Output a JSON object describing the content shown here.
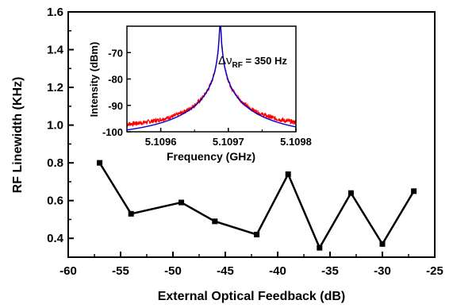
{
  "chart_data": [
    {
      "type": "line",
      "xlabel": "External Optical Feedback (dB)",
      "ylabel": "RF Linewidth (KHz)",
      "xlim": [
        -60,
        -25
      ],
      "ylim": [
        0.3,
        1.6
      ],
      "xticks": [
        "-60",
        "-55",
        "-50",
        "-45",
        "-40",
        "-35",
        "-30",
        "-25"
      ],
      "yticks": [
        "0.4",
        "0.6",
        "0.8",
        "1.0",
        "1.2",
        "1.4",
        "1.6"
      ],
      "grid": false,
      "series": [
        {
          "color": "#000000",
          "marker": "square",
          "x": [
            -57,
            -54,
            -49.2,
            -46,
            -42,
            -39,
            -36,
            -33,
            -30,
            -27
          ],
          "y": [
            0.8,
            0.53,
            0.59,
            0.49,
            0.42,
            0.74,
            0.35,
            0.64,
            0.37,
            0.65
          ]
        }
      ]
    },
    {
      "type": "line",
      "xlabel": "Frequency (GHz)",
      "ylabel": "Intensity (dBm)",
      "xlim": [
        5.10955,
        5.1098
      ],
      "ylim": [
        -100,
        -60
      ],
      "xticks": [
        "5.1096",
        "5.1097",
        "5.1098"
      ],
      "yticks": [
        "-100",
        "-90",
        "-80",
        "-70"
      ],
      "annotation": {
        "prefix": "Δν",
        "subscript": "RF",
        "suffix": " = 350 Hz"
      },
      "series": [
        {
          "color": "#ff0000",
          "kind": "measured-spectrum",
          "center": 5.109688,
          "peak": -58,
          "floor": -99
        },
        {
          "color": "#0000cc",
          "kind": "lorentzian-fit",
          "center": 5.109688,
          "peak": -58,
          "floor": -103
        }
      ]
    }
  ]
}
